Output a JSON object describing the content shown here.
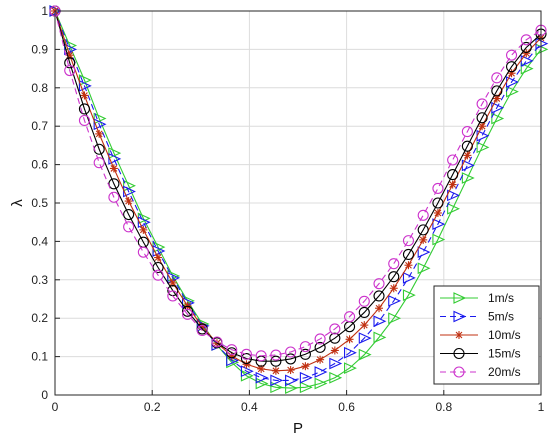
{
  "chart_data": {
    "type": "line",
    "xlabel": "P",
    "ylabel": "λ",
    "xlim": [
      0,
      1
    ],
    "ylim": [
      0,
      1
    ],
    "xticks": [
      0,
      0.2,
      0.4,
      0.6,
      0.8,
      1
    ],
    "yticks": [
      0,
      0.1,
      0.2,
      0.3,
      0.4,
      0.5,
      0.6,
      0.7,
      0.8,
      0.9,
      1
    ],
    "xtick_labels": [
      "0",
      "0.2",
      "0.4",
      "0.6",
      "0.8",
      "1"
    ],
    "ytick_labels": [
      "0",
      "0.1",
      "0.2",
      "0.3",
      "0.4",
      "0.5",
      "0.6",
      "0.7",
      "0.8",
      "0.9",
      "1"
    ],
    "grid": true,
    "legend_position": "lower-right",
    "x": [
      0,
      0.0303,
      0.0606,
      0.0909,
      0.1212,
      0.1515,
      0.1818,
      0.2121,
      0.2424,
      0.2727,
      0.303,
      0.3333,
      0.3636,
      0.3939,
      0.4242,
      0.4545,
      0.4848,
      0.5152,
      0.5455,
      0.5758,
      0.6061,
      0.6364,
      0.6667,
      0.697,
      0.7273,
      0.7576,
      0.7879,
      0.8182,
      0.8485,
      0.8788,
      0.9091,
      0.9394,
      0.9697,
      1.0
    ],
    "series": [
      {
        "name": "1m/s",
        "color": "#33cc33",
        "marker": "triangle-right",
        "dash": "solid",
        "values": [
          1.0,
          0.91,
          0.82,
          0.72,
          0.63,
          0.545,
          0.46,
          0.385,
          0.31,
          0.245,
          0.185,
          0.13,
          0.085,
          0.05,
          0.03,
          0.02,
          0.018,
          0.02,
          0.03,
          0.045,
          0.07,
          0.105,
          0.15,
          0.2,
          0.26,
          0.33,
          0.405,
          0.485,
          0.565,
          0.645,
          0.72,
          0.79,
          0.85,
          0.9
        ]
      },
      {
        "name": "5m/s",
        "color": "#1a1aee",
        "marker": "triangle-right",
        "dash": "dashed",
        "values": [
          1.0,
          0.9,
          0.805,
          0.705,
          0.615,
          0.53,
          0.45,
          0.375,
          0.305,
          0.24,
          0.18,
          0.13,
          0.09,
          0.062,
          0.045,
          0.038,
          0.038,
          0.045,
          0.06,
          0.082,
          0.11,
          0.148,
          0.192,
          0.245,
          0.305,
          0.372,
          0.445,
          0.52,
          0.598,
          0.675,
          0.748,
          0.815,
          0.87,
          0.915
        ]
      },
      {
        "name": "10m/s",
        "color": "#c03010",
        "marker": "asterisk",
        "dash": "solid",
        "values": [
          1.0,
          0.885,
          0.78,
          0.68,
          0.59,
          0.505,
          0.43,
          0.358,
          0.292,
          0.232,
          0.178,
          0.135,
          0.102,
          0.08,
          0.068,
          0.063,
          0.065,
          0.075,
          0.092,
          0.116,
          0.145,
          0.182,
          0.226,
          0.278,
          0.338,
          0.404,
          0.474,
          0.548,
          0.624,
          0.7,
          0.772,
          0.838,
          0.89,
          0.93
        ]
      },
      {
        "name": "15m/s",
        "color": "#000000",
        "marker": "circle",
        "dash": "solid",
        "values": [
          1.0,
          0.865,
          0.745,
          0.64,
          0.55,
          0.47,
          0.398,
          0.332,
          0.272,
          0.218,
          0.172,
          0.136,
          0.11,
          0.095,
          0.088,
          0.088,
          0.094,
          0.106,
          0.124,
          0.148,
          0.178,
          0.215,
          0.258,
          0.308,
          0.366,
          0.43,
          0.5,
          0.574,
          0.648,
          0.722,
          0.792,
          0.855,
          0.905,
          0.94
        ]
      },
      {
        "name": "20m/s",
        "color": "#cc33cc",
        "marker": "circle",
        "dash": "dashed",
        "values": [
          1.0,
          0.845,
          0.715,
          0.605,
          0.515,
          0.438,
          0.372,
          0.312,
          0.258,
          0.21,
          0.168,
          0.138,
          0.118,
          0.106,
          0.102,
          0.104,
          0.112,
          0.126,
          0.146,
          0.172,
          0.204,
          0.244,
          0.29,
          0.342,
          0.402,
          0.468,
          0.538,
          0.612,
          0.686,
          0.758,
          0.826,
          0.885,
          0.925,
          0.95
        ]
      }
    ]
  }
}
